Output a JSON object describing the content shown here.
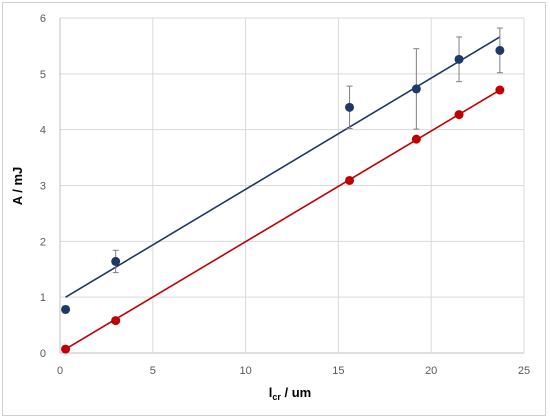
{
  "chart_data": {
    "type": "scatter",
    "xlabel": {
      "main": "l",
      "sub": "cr",
      "rest": " / um"
    },
    "ylabel": "A / mJ",
    "xlim": [
      0,
      25
    ],
    "ylim": [
      0,
      6
    ],
    "xticks": [
      "0",
      "5",
      "10",
      "15",
      "20",
      "25"
    ],
    "yticks": [
      "0",
      "1",
      "2",
      "3",
      "4",
      "5",
      "6"
    ],
    "grid": "vertical and horizontal",
    "legend": "none",
    "series": [
      {
        "color": "#1f3864",
        "marker": "circle",
        "x": [
          0.3,
          3.0,
          15.6,
          19.2,
          21.5,
          23.7
        ],
        "y": [
          0.78,
          1.64,
          4.4,
          4.73,
          5.26,
          5.42
        ],
        "yerr": [
          0.06,
          0.2,
          0.38,
          0.72,
          0.4,
          0.4
        ],
        "trendline": {
          "x": [
            0.3,
            23.7
          ],
          "y": [
            1.0,
            5.66
          ]
        }
      },
      {
        "color": "#c00000",
        "marker": "circle",
        "x": [
          0.3,
          3.0,
          15.6,
          19.2,
          21.5,
          23.7
        ],
        "y": [
          0.07,
          0.58,
          3.09,
          3.83,
          4.27,
          4.71
        ],
        "trendline": {
          "x": [
            0.3,
            23.7
          ],
          "y": [
            0.07,
            4.71
          ]
        }
      }
    ]
  }
}
